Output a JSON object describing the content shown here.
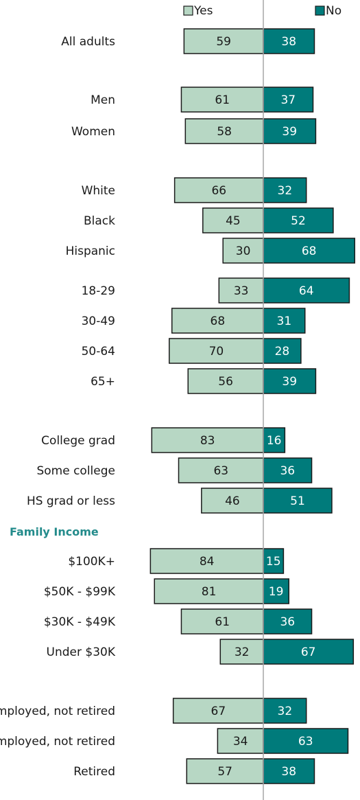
{
  "chart_data": {
    "type": "bar",
    "orientation": "horizontal-diverging",
    "legend": [
      "Yes",
      "No"
    ],
    "legend_position": "top-right",
    "colors": {
      "yes": "#b7d7c4",
      "no": "#007b7b",
      "outline": "#1a1a1a",
      "axis": "#a6a6a6",
      "section_title": "#238b8b"
    },
    "rows": [
      {
        "label": "All adults",
        "yes": 59,
        "no": 38
      },
      {
        "label": "Men",
        "yes": 61,
        "no": 37
      },
      {
        "label": "Women",
        "yes": 58,
        "no": 39
      },
      {
        "label": "White",
        "yes": 66,
        "no": 32
      },
      {
        "label": "Black",
        "yes": 45,
        "no": 52
      },
      {
        "label": "Hispanic",
        "yes": 30,
        "no": 68
      },
      {
        "label": "18-29",
        "yes": 33,
        "no": 64
      },
      {
        "label": "30-49",
        "yes": 68,
        "no": 31
      },
      {
        "label": "50-64",
        "yes": 70,
        "no": 28
      },
      {
        "label": "65+",
        "yes": 56,
        "no": 39
      },
      {
        "label": "College grad",
        "yes": 83,
        "no": 16
      },
      {
        "label": "Some college",
        "yes": 63,
        "no": 36
      },
      {
        "label": "HS grad or less",
        "yes": 46,
        "no": 51
      },
      {
        "section": "Family Income"
      },
      {
        "label": "$100K+",
        "yes": 84,
        "no": 15
      },
      {
        "label": "$50K - $99K",
        "yes": 81,
        "no": 19
      },
      {
        "label": "$30K - $49K",
        "yes": 61,
        "no": 36
      },
      {
        "label": "Under $30K",
        "yes": 32,
        "no": 67
      },
      {
        "label": "Employed, not retired",
        "yes": 67,
        "no": 32
      },
      {
        "label": "Not employed, not retired",
        "yes": 34,
        "no": 63
      },
      {
        "label": "Retired",
        "yes": 57,
        "no": 38
      }
    ]
  }
}
